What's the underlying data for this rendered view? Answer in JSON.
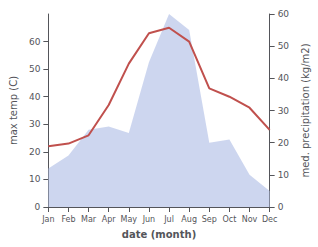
{
  "chart_data": {
    "type": "line",
    "categories": [
      "Jan",
      "Feb",
      "Mar",
      "Apr",
      "May",
      "Jun",
      "Jul",
      "Aug",
      "Sep",
      "Oct",
      "Nov",
      "Dec"
    ],
    "series": [
      {
        "type": "area",
        "axis": "y2",
        "color": "#b8c4e8",
        "values": [
          12,
          16,
          24,
          25,
          23,
          45,
          60,
          55,
          20,
          21,
          10,
          5
        ]
      },
      {
        "type": "line",
        "color": "#c0504d",
        "values": [
          22,
          23,
          26,
          37,
          52,
          63,
          65,
          60,
          43,
          40,
          36,
          28
        ]
      }
    ],
    "xlabel": "date (month)",
    "ylabel": "max temp (C)",
    "y2label": "med. precipitation (kg/m2)",
    "ylim": [
      0,
      70
    ],
    "yticks": [
      0,
      10,
      20,
      30,
      40,
      50,
      60
    ],
    "y2lim": [
      0,
      60
    ],
    "y2ticks": [
      0,
      10,
      20,
      30,
      40,
      50,
      60
    ],
    "grid": false
  }
}
